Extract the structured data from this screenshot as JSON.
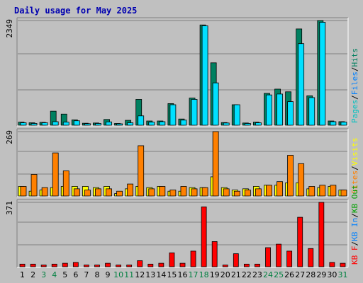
{
  "chart_data": {
    "type": "bar",
    "title": "Daily usage for May 2025",
    "categories": [
      "1",
      "2",
      "3",
      "4",
      "5",
      "6",
      "7",
      "8",
      "9",
      "10",
      "11",
      "12",
      "13",
      "14",
      "15",
      "16",
      "17",
      "18",
      "19",
      "20",
      "21",
      "22",
      "23",
      "24",
      "25",
      "26",
      "27",
      "28",
      "29",
      "30",
      "31"
    ],
    "weekend_days": [
      "3",
      "4",
      "10",
      "11",
      "17",
      "18",
      "24",
      "25",
      "31"
    ],
    "panels": [
      {
        "id": "top",
        "max_label": "2349",
        "ylim": [
          0,
          2349
        ],
        "label_parts": [
          {
            "text": "Pages",
            "color": "#00c0c0"
          },
          {
            "text": "/",
            "color": "#000000"
          },
          {
            "text": "Files",
            "color": "#0080ff"
          },
          {
            "text": "/",
            "color": "#000000"
          },
          {
            "text": "Hits",
            "color": "#008060"
          }
        ],
        "series": [
          {
            "name": "Hits",
            "color": "#008060",
            "values": [
              70,
              55,
              65,
              315,
              250,
              120,
              45,
              50,
              130,
              40,
              110,
              580,
              95,
              95,
              485,
              140,
              610,
              2250,
              1400,
              60,
              460,
              50,
              70,
              715,
              810,
              750,
              2160,
              660,
              2349,
              95,
              80
            ]
          },
          {
            "name": "Files",
            "color": "#00e0ff",
            "values": [
              55,
              40,
              55,
              80,
              70,
              100,
              35,
              40,
              75,
              25,
              55,
              210,
              70,
              80,
              460,
              115,
              580,
              2230,
              950,
              50,
              460,
              40,
              55,
              680,
              700,
              530,
              1830,
              620,
              2310,
              80,
              70
            ]
          }
        ]
      },
      {
        "id": "middle",
        "max_label": "269",
        "ylim": [
          0,
          269
        ],
        "label_parts": [
          {
            "text": "Sites",
            "color": "#ff8000"
          },
          {
            "text": "/",
            "color": "#000000"
          },
          {
            "text": "Visits",
            "color": "#ffff00"
          }
        ],
        "series": [
          {
            "name": "Visits",
            "color": "#ffff00",
            "values": [
              40,
              20,
              25,
              35,
              40,
              40,
              40,
              35,
              40,
              10,
              30,
              40,
              35,
              40,
              20,
              20,
              35,
              35,
              80,
              35,
              25,
              30,
              40,
              45,
              45,
              55,
              55,
              30,
              35,
              40,
              25
            ]
          },
          {
            "name": "Sites",
            "color": "#ff8000",
            "values": [
              40,
              90,
              35,
              180,
              105,
              30,
              25,
              30,
              30,
              20,
              50,
              210,
              30,
              40,
              25,
              40,
              30,
              35,
              269,
              30,
              20,
              25,
              30,
              45,
              60,
              170,
              135,
              40,
              45,
              45,
              25
            ]
          }
        ]
      },
      {
        "id": "bottom",
        "max_label": "371",
        "ylim": [
          0,
          371
        ],
        "label_parts": [
          {
            "text": "KB F",
            "color": "#ff0000"
          },
          {
            "text": "/",
            "color": "#000000"
          },
          {
            "text": "KB In",
            "color": "#0080ff"
          },
          {
            "text": "/",
            "color": "#000000"
          },
          {
            "text": "KB Out",
            "color": "#00a000"
          }
        ],
        "series": [
          {
            "name": "KB F",
            "color": "#ff0000",
            "values": [
              15,
              15,
              10,
              15,
              20,
              25,
              10,
              10,
              20,
              10,
              10,
              35,
              15,
              20,
              80,
              20,
              90,
              345,
              145,
              10,
              75,
              15,
              15,
              110,
              130,
              90,
              285,
              105,
              371,
              25,
              20
            ]
          }
        ]
      }
    ]
  }
}
